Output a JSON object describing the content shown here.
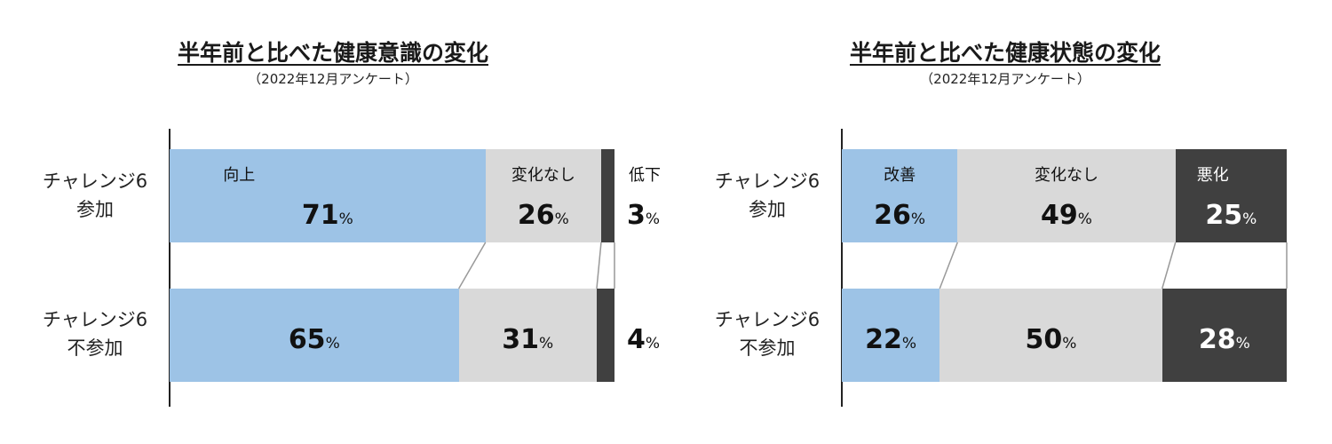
{
  "chart_data": [
    {
      "type": "bar",
      "orientation": "horizontal",
      "stacked": true,
      "normalized": true,
      "title": "半年前と比べた健康意識の変化",
      "subtitle": "（2022年12月アンケート）",
      "categories": [
        [
          "チャレンジ6",
          "参加"
        ],
        [
          "チャレンジ6",
          "不参加"
        ]
      ],
      "series": [
        {
          "name": "向上",
          "values": [
            71,
            65
          ],
          "color": "#9dc3e6"
        },
        {
          "name": "変化なし",
          "values": [
            26,
            31
          ],
          "color": "#d9d9d9"
        },
        {
          "name": "低下",
          "values": [
            3,
            4
          ],
          "color": "#404040"
        }
      ],
      "unit": "%",
      "xlim": [
        0,
        100
      ]
    },
    {
      "type": "bar",
      "orientation": "horizontal",
      "stacked": true,
      "normalized": true,
      "title": "半年前と比べた健康状態の変化",
      "subtitle": "（2022年12月アンケート）",
      "categories": [
        [
          "チャレンジ6",
          "参加"
        ],
        [
          "チャレンジ6",
          "不参加"
        ]
      ],
      "series": [
        {
          "name": "改善",
          "values": [
            26,
            22
          ],
          "color": "#9dc3e6"
        },
        {
          "name": "変化なし",
          "values": [
            49,
            50
          ],
          "color": "#d9d9d9"
        },
        {
          "name": "悪化",
          "values": [
            25,
            28
          ],
          "color": "#404040"
        }
      ],
      "unit": "%",
      "xlim": [
        0,
        100
      ]
    }
  ]
}
